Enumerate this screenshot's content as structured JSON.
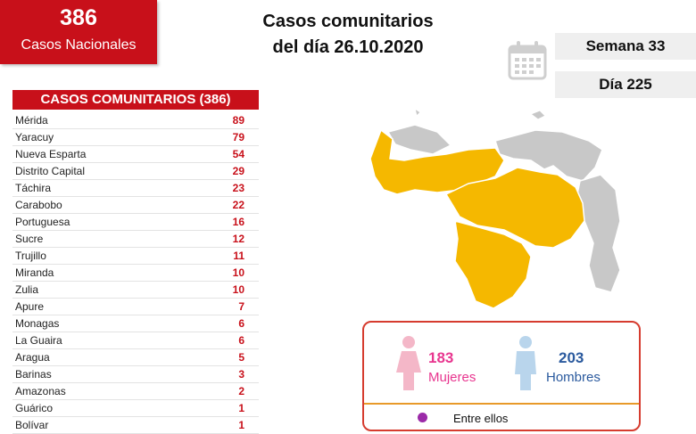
{
  "national": {
    "count": "386",
    "label": "Casos Nacionales"
  },
  "title": {
    "line1": "Casos comunitarios",
    "line2": "del día 26.10.2020"
  },
  "week": "Semana 33",
  "day": "Día 225",
  "table": {
    "header": "CASOS COMUNITARIOS (386)",
    "rows": [
      {
        "state": "Mérida",
        "value": "89"
      },
      {
        "state": "Yaracuy",
        "value": "79"
      },
      {
        "state": "Nueva Esparta",
        "value": "54"
      },
      {
        "state": "Distrito Capital",
        "value": "29"
      },
      {
        "state": "Táchira",
        "value": "23"
      },
      {
        "state": "Carabobo",
        "value": "22"
      },
      {
        "state": "Portuguesa",
        "value": "16"
      },
      {
        "state": "Sucre",
        "value": "12"
      },
      {
        "state": "Trujillo",
        "value": "11"
      },
      {
        "state": "Miranda",
        "value": "10"
      },
      {
        "state": "Zulia",
        "value": "10"
      },
      {
        "state": "Apure",
        "value": "7"
      },
      {
        "state": "Monagas",
        "value": "6"
      },
      {
        "state": "La Guaira",
        "value": "6"
      },
      {
        "state": "Aragua",
        "value": "5"
      },
      {
        "state": "Barinas",
        "value": "3"
      },
      {
        "state": "Amazonas",
        "value": "2"
      },
      {
        "state": "Guárico",
        "value": "1"
      },
      {
        "state": "Bolívar",
        "value": "1"
      }
    ]
  },
  "gender": {
    "women": {
      "count": "183",
      "label": "Mujeres"
    },
    "men": {
      "count": "203",
      "label": "Hombres"
    }
  },
  "footer_text": "Entre ellos",
  "colors": {
    "red": "#c8101a",
    "affected": "#f5b800",
    "unaffected": "#c8c8c8",
    "women": "#e8368f",
    "men": "#2b5a9e"
  },
  "icons": {
    "calendar": "calendar-icon",
    "woman": "woman-icon",
    "man": "man-icon"
  }
}
